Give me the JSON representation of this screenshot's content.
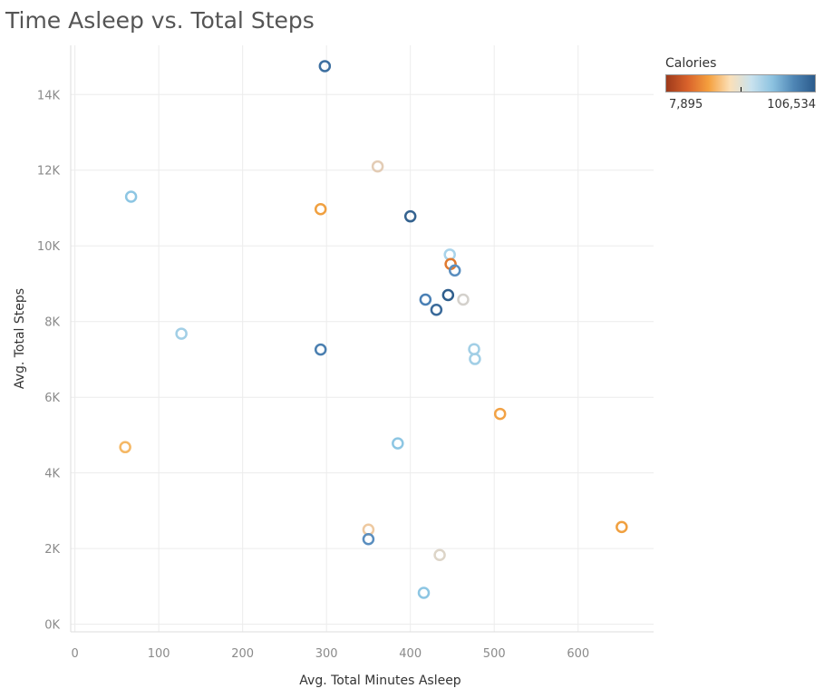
{
  "title": "Time Asleep vs. Total Steps",
  "legend": {
    "title": "Calories",
    "min_label": "7,895",
    "max_label": "106,534",
    "gradient_colors": [
      "#9e3a1b",
      "#d9622b",
      "#f5a03e",
      "#fbe0b8",
      "#c9e2ee",
      "#8cc2e0",
      "#4f86b5",
      "#2b5b8c"
    ]
  },
  "chart_data": {
    "type": "scatter",
    "xlabel": "Avg. Total Minutes Asleep",
    "ylabel": "Avg. Total Steps",
    "xlim": [
      -5,
      690
    ],
    "ylim": [
      -200,
      15300
    ],
    "x_ticks": [
      0,
      100,
      200,
      300,
      400,
      500,
      600
    ],
    "x_tick_labels": [
      "0",
      "100",
      "200",
      "300",
      "400",
      "500",
      "600"
    ],
    "y_ticks": [
      0,
      2000,
      4000,
      6000,
      8000,
      10000,
      12000,
      14000
    ],
    "y_tick_labels": [
      "0K",
      "2K",
      "4K",
      "6K",
      "8K",
      "10K",
      "12K",
      "14K"
    ],
    "grid": true,
    "legend_position": "top-right",
    "points": [
      {
        "x": 298,
        "y": 14750,
        "color": "#3d6fa0"
      },
      {
        "x": 361,
        "y": 12100,
        "color": "#e3ccb5"
      },
      {
        "x": 67,
        "y": 11300,
        "color": "#8dc6e3"
      },
      {
        "x": 293,
        "y": 10970,
        "color": "#f0a040"
      },
      {
        "x": 400,
        "y": 10780,
        "color": "#34628f"
      },
      {
        "x": 447,
        "y": 9770,
        "color": "#a8d3ea"
      },
      {
        "x": 448,
        "y": 9520,
        "color": "#e07a30"
      },
      {
        "x": 453,
        "y": 9350,
        "color": "#5a8ebf"
      },
      {
        "x": 445,
        "y": 8700,
        "color": "#2f5e8c"
      },
      {
        "x": 418,
        "y": 8580,
        "color": "#4a80b5"
      },
      {
        "x": 463,
        "y": 8580,
        "color": "#d4d1cc"
      },
      {
        "x": 431,
        "y": 8310,
        "color": "#3a6a9a"
      },
      {
        "x": 127,
        "y": 7680,
        "color": "#a2cfe6"
      },
      {
        "x": 293,
        "y": 7260,
        "color": "#4a7fb0"
      },
      {
        "x": 476,
        "y": 7270,
        "color": "#a2cfe6"
      },
      {
        "x": 477,
        "y": 7010,
        "color": "#a2cfe6"
      },
      {
        "x": 507,
        "y": 5560,
        "color": "#f2a245"
      },
      {
        "x": 60,
        "y": 4680,
        "color": "#f5b865"
      },
      {
        "x": 385,
        "y": 4780,
        "color": "#8dc6e3"
      },
      {
        "x": 652,
        "y": 2570,
        "color": "#f0a040"
      },
      {
        "x": 350,
        "y": 2500,
        "color": "#eec9a0"
      },
      {
        "x": 350,
        "y": 2250,
        "color": "#5a8ebf"
      },
      {
        "x": 435,
        "y": 1830,
        "color": "#ddd5c8"
      },
      {
        "x": 416,
        "y": 830,
        "color": "#8dc6e3"
      }
    ]
  }
}
